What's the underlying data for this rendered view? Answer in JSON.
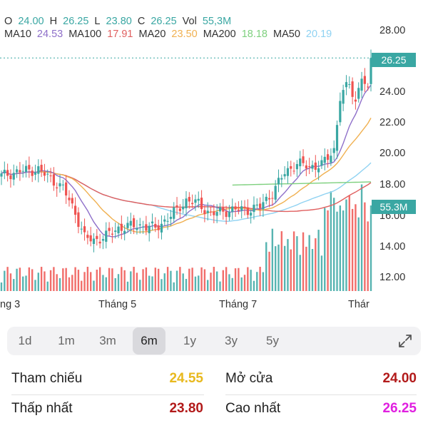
{
  "ohlc": {
    "o_label": "O",
    "o": "24.00",
    "h_label": "H",
    "h": "26.25",
    "l_label": "L",
    "l": "23.80",
    "c_label": "C",
    "c": "26.25",
    "vol_label": "Vol",
    "vol": "55,3M"
  },
  "ma": {
    "ma10_label": "MA10",
    "ma10": "24.53",
    "ma100_label": "MA100",
    "ma100": "17.91",
    "ma20_label": "MA20",
    "ma20": "23.50",
    "ma200_label": "MA200",
    "ma200": "18.18",
    "ma50_label": "MA50",
    "ma50": "20.19"
  },
  "colors": {
    "up": "#3aa7a3",
    "down": "#ef5350",
    "ma10": "#8e6fc9",
    "ma100": "#e06060",
    "ma20": "#f0b050",
    "ma200": "#7ed07e",
    "ma50": "#8fd2f2",
    "badge": "#3aa7a3"
  },
  "price_badge": "26.25",
  "volume_badge": "55.3M",
  "chart_data": {
    "type": "candlestick",
    "y_ticks": [
      "28.00",
      "26.00",
      "24.00",
      "22.00",
      "20.00",
      "18.00",
      "16.00",
      "14.00",
      "12.00"
    ],
    "x_ticks": [
      "ng 3",
      "Tháng 5",
      "Tháng 7",
      "Thár"
    ],
    "ylim": [
      11.5,
      28.6
    ],
    "last_price": 26.25
  },
  "ranges": [
    "1d",
    "1m",
    "3m",
    "6m",
    "1y",
    "3y",
    "5y"
  ],
  "active_range": "6m",
  "expand_icon": "expand-icon",
  "stats": {
    "ref_label": "Tham chiếu",
    "ref_value": "24.55",
    "open_label": "Mở cửa",
    "open_value": "24.00",
    "low_label": "Thấp nhất",
    "low_value": "23.80",
    "high_label": "Cao nhất",
    "high_value": "26.25"
  },
  "stat_colors": {
    "ref": "#e8b91f",
    "open": "#b21a1a",
    "low": "#b21a1a",
    "high": "#e020e0"
  }
}
